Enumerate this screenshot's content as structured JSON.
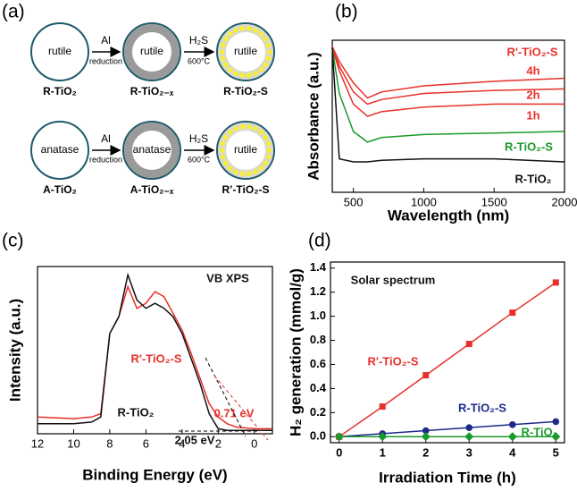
{
  "diagram": {
    "label": "(a)",
    "rows": [
      {
        "circles": [
          {
            "inner": "rutile",
            "label": "R-TiO₂"
          },
          {
            "inner": "rutile",
            "label": "R-TiO₂₋ₓ"
          },
          {
            "inner": "rutile",
            "label": "R-TiO₂-S"
          }
        ],
        "arrows": [
          {
            "top": "Al",
            "bottom": "reduction"
          },
          {
            "top": "H₂S",
            "bottom": "600°C"
          }
        ]
      },
      {
        "circles": [
          {
            "inner": "anatase",
            "label": "A-TiO₂"
          },
          {
            "inner": "anatase",
            "label": "A-TiO₂₋ₓ"
          },
          {
            "inner": "rutile",
            "label": "R’-TiO₂-S"
          }
        ],
        "arrows": [
          {
            "top": "Al",
            "bottom": "reduction"
          },
          {
            "top": "H₂S",
            "bottom": "600°C"
          }
        ]
      }
    ]
  },
  "chart_data": [
    {
      "type": "line",
      "panel": "(b)",
      "x_label": "Wavelength (nm)",
      "y_label": "Absorbance (a.u.)",
      "annotations": [
        "R'-TiO₂-S"
      ],
      "x": [
        350,
        400,
        500,
        600,
        700,
        1000,
        1500,
        2000
      ],
      "xlim": [
        350,
        2000
      ],
      "xticks": [
        500,
        1000,
        1500,
        2000
      ],
      "ylim": [
        0,
        1
      ],
      "series": [
        {
          "name": "4h",
          "color": "#e8302a",
          "values": [
            0.96,
            0.86,
            0.72,
            0.62,
            0.66,
            0.7,
            0.73,
            0.75
          ]
        },
        {
          "name": "2h",
          "color": "#e8302a",
          "values": [
            0.95,
            0.83,
            0.66,
            0.58,
            0.61,
            0.65,
            0.67,
            0.68
          ]
        },
        {
          "name": "1h",
          "color": "#e8302a",
          "values": [
            0.95,
            0.8,
            0.58,
            0.5,
            0.53,
            0.56,
            0.58,
            0.58
          ]
        },
        {
          "name": "R-TiO₂-S",
          "color": "#1a9a2a",
          "values": [
            0.95,
            0.65,
            0.4,
            0.33,
            0.36,
            0.38,
            0.39,
            0.4
          ]
        },
        {
          "name": "R-TiO₂",
          "color": "#111111",
          "values": [
            0.95,
            0.22,
            0.2,
            0.2,
            0.21,
            0.22,
            0.22,
            0.2
          ]
        }
      ]
    },
    {
      "type": "line",
      "panel": "(c)",
      "x_label": "Binding Energy (eV)",
      "y_label": "Intensity (a.u.)",
      "annotations": [
        "VB XPS",
        "0.71 eV",
        "2.05 eV"
      ],
      "x": [
        12,
        10,
        9,
        8.5,
        8,
        7.5,
        7,
        6.5,
        6,
        5.5,
        5,
        4.5,
        4,
        3.5,
        3,
        2.5,
        2,
        1.5,
        1,
        0,
        -1
      ],
      "xlim": [
        12,
        -1
      ],
      "xticks": [
        12,
        10,
        8,
        6,
        4,
        2,
        0
      ],
      "ylim": [
        0,
        1
      ],
      "series": [
        {
          "name": "R'-TiO₂-S",
          "color": "#e8302a",
          "values": [
            0.1,
            0.09,
            0.1,
            0.12,
            0.6,
            0.7,
            0.88,
            0.75,
            0.78,
            0.85,
            0.82,
            0.72,
            0.62,
            0.48,
            0.33,
            0.18,
            0.1,
            0.06,
            0.04,
            0.03,
            0.03
          ]
        },
        {
          "name": "R-TiO₂",
          "color": "#111111",
          "values": [
            0.06,
            0.06,
            0.07,
            0.1,
            0.6,
            0.7,
            0.95,
            0.8,
            0.75,
            0.78,
            0.75,
            0.7,
            0.6,
            0.45,
            0.3,
            0.12,
            0.03,
            0.02,
            0.02,
            0.02,
            0.02
          ]
        }
      ]
    },
    {
      "type": "line",
      "panel": "(d)",
      "x_label": "Irradiation Time (h)",
      "y_label": "H₂ generation (mmol/g)",
      "annotations": [
        "Solar spectrum"
      ],
      "x": [
        0,
        1,
        2,
        3,
        4,
        5
      ],
      "xlim": [
        -0.2,
        5.2
      ],
      "xticks": [
        0,
        1,
        2,
        3,
        4,
        5
      ],
      "ylim": [
        -0.05,
        1.45
      ],
      "yticks": [
        {
          "value": 0,
          "label": "0.0"
        },
        {
          "value": 0.2,
          "label": "0.2"
        },
        {
          "value": 0.4,
          "label": "0.4"
        },
        {
          "value": 0.6,
          "label": "0.6"
        },
        {
          "value": 0.8,
          "label": "0.8"
        },
        {
          "value": 1,
          "label": "1.0"
        },
        {
          "value": 1.2,
          "label": "1.2"
        },
        {
          "value": 1.4,
          "label": "1.4"
        }
      ],
      "series": [
        {
          "name": "R'-TiO₂-S",
          "color": "#e8302a",
          "marker": "square",
          "values": [
            0,
            0.25,
            0.51,
            0.77,
            1.03,
            1.28
          ]
        },
        {
          "name": "R-TiO₂-S",
          "color": "#1c2a8c",
          "marker": "circle",
          "values": [
            0,
            0.025,
            0.05,
            0.075,
            0.1,
            0.125
          ]
        },
        {
          "name": "R-TiO₂",
          "color": "#1a9a2a",
          "marker": "diamond",
          "values": [
            0,
            0,
            0,
            0,
            0,
            0
          ]
        }
      ]
    }
  ]
}
